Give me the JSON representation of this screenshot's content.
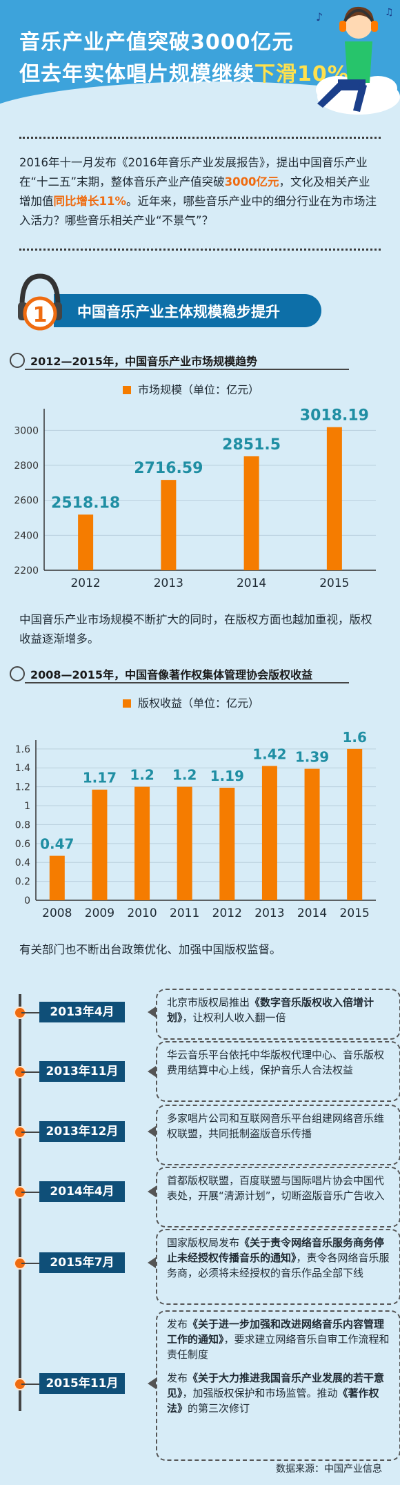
{
  "header": {
    "title_line1": "音乐产业产值突破3000亿元",
    "title_line2_a": "但去年实体唱片规模继续",
    "title_line2_b": "下滑10%"
  },
  "intro": {
    "p1": "2016年十一月发布《2016年音乐产业发展报告》，提出中国音乐产业在“十二五”末期，整体音乐产业产值突破",
    "hl1": "3000亿元",
    "p2": "，文化及相关产业增加值",
    "hl2": "同比增长11%",
    "p3": "。近年来，哪些音乐产业中的细分行业在为市场注入活力？哪些音乐相关产业“不景气”？"
  },
  "section1": {
    "number": "1",
    "title": "中国音乐产业主体规模稳步提升"
  },
  "chart1_heading": "2012—2015年，中国音乐产业市场规模趋势",
  "chart2_heading": "2008—2015年，中国音像著作权集体管理协会版权收益",
  "text_after_chart1": "中国音乐产业市场规模不断扩大的同时，在版权方面也越加重视，版权收益逐渐增多。",
  "text_after_chart2": "有关部门也不断出台政策优化、加强中国版权监督。",
  "chart_data": [
    {
      "type": "bar",
      "legend": "市场规模（单位：亿元）",
      "categories": [
        "2012",
        "2013",
        "2014",
        "2015"
      ],
      "values": [
        2518.18,
        2716.59,
        2851.5,
        3018.19
      ],
      "labels": [
        "2518.18",
        "2716.59",
        "2851.5",
        "3018.19"
      ],
      "yticks": [
        "2200",
        "2400",
        "2600",
        "2800",
        "3000"
      ],
      "ylim": [
        2200,
        3100
      ],
      "color": "#f57c00",
      "label_color": "#1f8ea3"
    },
    {
      "type": "bar",
      "legend": "版权收益（单位：亿元）",
      "categories": [
        "2008",
        "2009",
        "2010",
        "2011",
        "2012",
        "2013",
        "2014",
        "2015"
      ],
      "values": [
        0.47,
        1.17,
        1.2,
        1.2,
        1.19,
        1.42,
        1.39,
        1.6
      ],
      "labels": [
        "0.47",
        "1.17",
        "1.2",
        "1.2",
        "1.19",
        "1.42",
        "1.39",
        "1.6"
      ],
      "yticks": [
        "0",
        "0.2",
        "0.4",
        "0.6",
        "0.8",
        "1",
        "1.2",
        "1.4",
        "1.6"
      ],
      "ylim": [
        0,
        1.65
      ],
      "color": "#f57c00",
      "label_color": "#1f8ea3"
    }
  ],
  "timeline": [
    {
      "date": "2013年4月",
      "pre": "北京市版权局推出",
      "bold": "《数字音乐版权收入倍增计划》",
      "post": "，让权利人收入翻一倍"
    },
    {
      "date": "2013年11月",
      "pre": "华云音乐平台依托中华版权代理中心、音乐版权费用结算中心上线，保护音乐人合法权益",
      "bold": "",
      "post": ""
    },
    {
      "date": "2013年12月",
      "pre": "多家唱片公司和互联网音乐平台组建网络音乐维权联盟，共同抵制盗版音乐传播",
      "bold": "",
      "post": ""
    },
    {
      "date": "2014年4月",
      "pre": "首都版权联盟，百度联盟与国际唱片协会中国代表处，开展“清源计划”，切断盗版音乐广告收入",
      "bold": "",
      "post": ""
    },
    {
      "date": "2015年7月",
      "pre": "国家版权局发布",
      "bold": "《关于责令网络音乐服务商务停止未经授权传播音乐的通知》",
      "post": "，责令各网络音乐服务商，必须将未经授权的音乐作品全部下线"
    },
    {
      "date": "2015年11月",
      "item1_pre": "发布",
      "item1_bold": "《关于进一步加强和改进网络音乐内容管理工作的通知》",
      "item1_post": "，要求建立网络音乐自审工作流程和责任制度",
      "item2_pre": "发布",
      "item2_bold": "《关于大力推进我国音乐产业发展的若干意见》",
      "item2_post": "，加强版权保护和市场监管。推动",
      "item2_bold2": "《著作权法》",
      "item2_post2": "的第三次修订"
    }
  ],
  "source": "数据来源：中国产业信息"
}
